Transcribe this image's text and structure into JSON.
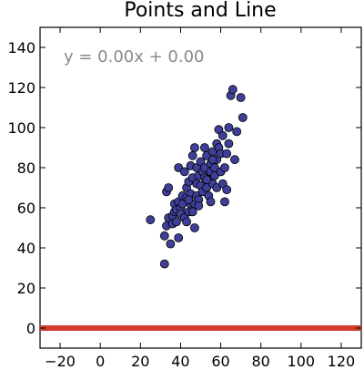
{
  "chart_data": {
    "type": "scatter",
    "title": "Points and Line",
    "xlabel": "",
    "ylabel": "",
    "xlim": [
      -30,
      130
    ],
    "ylim": [
      -10,
      150
    ],
    "xticks": [
      -20,
      0,
      20,
      40,
      60,
      80,
      100,
      120
    ],
    "yticks": [
      0,
      20,
      40,
      60,
      80,
      100,
      120,
      140
    ],
    "xtick_labels": [
      "−20",
      "0",
      "20",
      "40",
      "60",
      "80",
      "100",
      "120"
    ],
    "ytick_labels": [
      "0",
      "20",
      "40",
      "60",
      "80",
      "100",
      "120",
      "140"
    ],
    "grid": false,
    "annotation": "y = 0.00x + 0.00",
    "colors": {
      "points": "#3f3f9a",
      "point_edge": "#000000",
      "line": "#d33b2c",
      "annotation": "#8a8a8a"
    },
    "points": [
      [
        25,
        54
      ],
      [
        32,
        32
      ],
      [
        32,
        46
      ],
      [
        33,
        51
      ],
      [
        34,
        55
      ],
      [
        33,
        68
      ],
      [
        34,
        70
      ],
      [
        35,
        42
      ],
      [
        36,
        56
      ],
      [
        36,
        52
      ],
      [
        37,
        58
      ],
      [
        37,
        62
      ],
      [
        38,
        59
      ],
      [
        38,
        53
      ],
      [
        39,
        63
      ],
      [
        39,
        45
      ],
      [
        39,
        80
      ],
      [
        40,
        60
      ],
      [
        40,
        57
      ],
      [
        41,
        66
      ],
      [
        41,
        62
      ],
      [
        42,
        55
      ],
      [
        42,
        78
      ],
      [
        43,
        53
      ],
      [
        43,
        70
      ],
      [
        43,
        65
      ],
      [
        44,
        58
      ],
      [
        44,
        73
      ],
      [
        45,
        81
      ],
      [
        45,
        67
      ],
      [
        45,
        62
      ],
      [
        46,
        86
      ],
      [
        46,
        75
      ],
      [
        47,
        90
      ],
      [
        47,
        62
      ],
      [
        47,
        50
      ],
      [
        48,
        66
      ],
      [
        48,
        72
      ],
      [
        48,
        80
      ],
      [
        49,
        64
      ],
      [
        49,
        76
      ],
      [
        50,
        83
      ],
      [
        50,
        71
      ],
      [
        51,
        68
      ],
      [
        51,
        78
      ],
      [
        52,
        75
      ],
      [
        52,
        80
      ],
      [
        53,
        70
      ],
      [
        53,
        86
      ],
      [
        54,
        74
      ],
      [
        54,
        66
      ],
      [
        55,
        82
      ],
      [
        55,
        78
      ],
      [
        55,
        63
      ],
      [
        56,
        88
      ],
      [
        56,
        72
      ],
      [
        57,
        80
      ],
      [
        57,
        76
      ],
      [
        58,
        92
      ],
      [
        58,
        84
      ],
      [
        58,
        70
      ],
      [
        59,
        99
      ],
      [
        59,
        90
      ],
      [
        60,
        78
      ],
      [
        60,
        87
      ],
      [
        61,
        96
      ],
      [
        61,
        72
      ],
      [
        62,
        80
      ],
      [
        62,
        63
      ],
      [
        63,
        87
      ],
      [
        63,
        69
      ],
      [
        64,
        100
      ],
      [
        64,
        92
      ],
      [
        65,
        116
      ],
      [
        66,
        119
      ],
      [
        67,
        84
      ],
      [
        68,
        98
      ],
      [
        70,
        115
      ],
      [
        71,
        105
      ],
      [
        49,
        61
      ],
      [
        46,
        58
      ],
      [
        44,
        64
      ],
      [
        53,
        74
      ],
      [
        56,
        84
      ],
      [
        52,
        90
      ]
    ],
    "line": {
      "slope": 0.0,
      "intercept": 0.0,
      "x_range": [
        -30,
        130
      ]
    }
  }
}
